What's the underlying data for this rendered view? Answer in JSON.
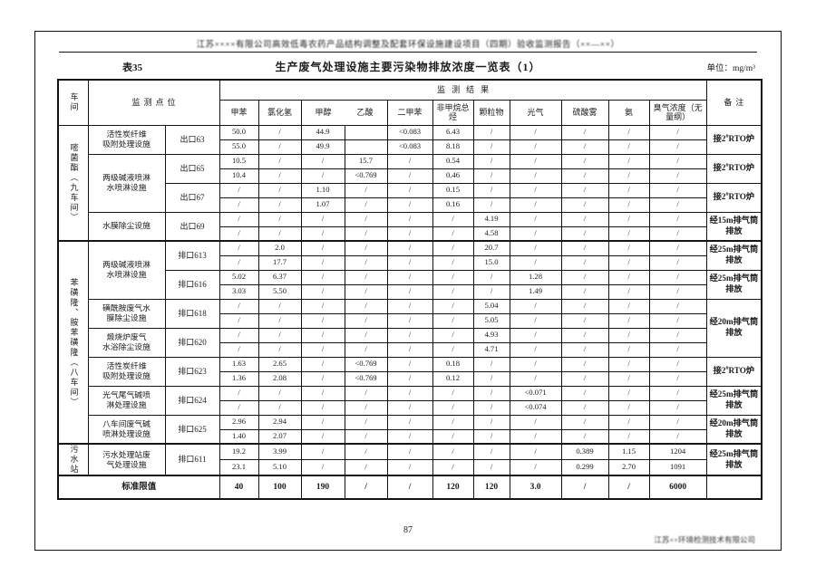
{
  "page": {
    "running_title": "江苏××××有限公司高效低毒农药产品结构调整及配套环保设施建设项目（四期）验收监测报告（××—××）",
    "table_no": "表35",
    "title": "生产废气处理设施主要污染物排放浓度一览表（1）",
    "unit": "单位：mg/m³",
    "page_number": "87",
    "footer_company": "江苏××环境检测技术有限公司"
  },
  "table": {
    "corner": {
      "workshop": "车间",
      "point": "监测点位",
      "result": "监测结果",
      "remark": "备注",
      "limits_label": "标准限值"
    },
    "columns": [
      "甲苯",
      "氯化氢",
      "甲醇",
      "乙酸",
      "二甲苯",
      "非甲烷总烃",
      "颗粒物",
      "光气",
      "硫酸雾",
      "氨",
      "臭气浓度（无量纲）"
    ],
    "sections": [
      {
        "row": 0,
        "span": 8,
        "label": "嘧菌酯（九车间）"
      },
      {
        "row": 8,
        "span": 14,
        "label": "苯磺隆、胺苯磺隆（八车间）"
      },
      {
        "row": 22,
        "span": 2,
        "label": "污水站"
      }
    ],
    "facilities": [
      {
        "row": 0,
        "span": 2,
        "name": "活性炭纤维\n吸附处理设施"
      },
      {
        "row": 2,
        "span": 4,
        "name": "两级碱液喷淋\n水喷淋设施"
      },
      {
        "row": 6,
        "span": 2,
        "name": "水膜除尘设施"
      },
      {
        "row": 8,
        "span": 4,
        "name": "两级碱液喷淋\n水喷淋设施"
      },
      {
        "row": 12,
        "span": 2,
        "name": "磺酰胺废气水\n膜除尘设施"
      },
      {
        "row": 14,
        "span": 2,
        "name": "煅烧炉废气\n水浴除尘设施"
      },
      {
        "row": 16,
        "span": 2,
        "name": "活性炭纤维\n吸附处理设施"
      },
      {
        "row": 18,
        "span": 2,
        "name": "光气尾气碱喷\n淋处理设施"
      },
      {
        "row": 20,
        "span": 2,
        "name": "八车间废气碱\n喷淋处理设施"
      },
      {
        "row": 22,
        "span": 2,
        "name": "污水处理站废\n气处理设施"
      }
    ],
    "outlets": [
      {
        "row": 0,
        "span": 2,
        "label": "出口63"
      },
      {
        "row": 2,
        "span": 2,
        "label": "出口65"
      },
      {
        "row": 4,
        "span": 2,
        "label": "出口67"
      },
      {
        "row": 6,
        "span": 2,
        "label": "出口69"
      },
      {
        "row": 8,
        "span": 2,
        "label": "排口613"
      },
      {
        "row": 10,
        "span": 2,
        "label": "排口616"
      },
      {
        "row": 12,
        "span": 2,
        "label": "排口618"
      },
      {
        "row": 14,
        "span": 2,
        "label": "排口620"
      },
      {
        "row": 16,
        "span": 2,
        "label": "排口623"
      },
      {
        "row": 18,
        "span": 2,
        "label": "排口624"
      },
      {
        "row": 20,
        "span": 2,
        "label": "排口625"
      },
      {
        "row": 22,
        "span": 2,
        "label": "排口611"
      }
    ],
    "remarks": [
      {
        "row": 0,
        "span": 2,
        "text": "接2#RTO炉"
      },
      {
        "row": 2,
        "span": 2,
        "text": "接2#RTO炉"
      },
      {
        "row": 4,
        "span": 2,
        "text": "接2#RTO炉"
      },
      {
        "row": 6,
        "span": 2,
        "text": "经15m排气筒排放"
      },
      {
        "row": 8,
        "span": 2,
        "text": "经25m排气筒排放"
      },
      {
        "row": 10,
        "span": 2,
        "text": "经25m排气筒排放"
      },
      {
        "row": 12,
        "span": 4,
        "text": "经20m排气筒排放"
      },
      {
        "row": 16,
        "span": 2,
        "text": "接2#RTO炉"
      },
      {
        "row": 18,
        "span": 2,
        "text": "经25m排气筒排放"
      },
      {
        "row": 20,
        "span": 2,
        "text": "经20m排气筒排放"
      },
      {
        "row": 22,
        "span": 2,
        "text": "经25m排气筒排放"
      }
    ],
    "rows": [
      [
        "50.0",
        "/",
        "44.9",
        "",
        "<0.083",
        "6.43",
        "/",
        "/",
        "/",
        "/",
        "/"
      ],
      [
        "55.0",
        "/",
        "49.9",
        "",
        "<0.083",
        "8.18",
        "/",
        "/",
        "/",
        "/",
        "/"
      ],
      [
        "10.5",
        "/",
        "/",
        "15.7",
        "/",
        "0.54",
        "/",
        "/",
        "/",
        "/",
        "/"
      ],
      [
        "10.4",
        "/",
        "/",
        "<0.769",
        "/",
        "0.46",
        "/",
        "/",
        "/",
        "/",
        "/"
      ],
      [
        "/",
        "/",
        "1.10",
        "/",
        "/",
        "0.15",
        "/",
        "/",
        "/",
        "/",
        "/"
      ],
      [
        "/",
        "/",
        "1.07",
        "/",
        "/",
        "0.16",
        "/",
        "/",
        "/",
        "/",
        "/"
      ],
      [
        "/",
        "/",
        "/",
        "/",
        "/",
        "/",
        "4.19",
        "/",
        "/",
        "/",
        "/"
      ],
      [
        "/",
        "/",
        "/",
        "/",
        "/",
        "/",
        "4.58",
        "/",
        "/",
        "/",
        "/"
      ],
      [
        "/",
        "2.0",
        "/",
        "/",
        "/",
        "/",
        "20.7",
        "/",
        "/",
        "/",
        "/"
      ],
      [
        "/",
        "17.7",
        "/",
        "/",
        "/",
        "/",
        "15.0",
        "/",
        "/",
        "/",
        "/"
      ],
      [
        "5.02",
        "6.37",
        "/",
        "/",
        "/",
        "/",
        "/",
        "1.28",
        "/",
        "/",
        "/"
      ],
      [
        "3.03",
        "5.50",
        "/",
        "/",
        "/",
        "/",
        "/",
        "1.49",
        "/",
        "/",
        "/"
      ],
      [
        "/",
        "/",
        "/",
        "/",
        "/",
        "/",
        "5.04",
        "/",
        "/",
        "/",
        "/"
      ],
      [
        "/",
        "/",
        "/",
        "/",
        "/",
        "/",
        "5.05",
        "/",
        "/",
        "/",
        "/"
      ],
      [
        "/",
        "/",
        "/",
        "/",
        "/",
        "/",
        "4.93",
        "/",
        "/",
        "/",
        "/"
      ],
      [
        "/",
        "/",
        "/",
        "/",
        "/",
        "/",
        "4.71",
        "/",
        "/",
        "/",
        "/"
      ],
      [
        "1.63",
        "2.65",
        "/",
        "<0.769",
        "/",
        "0.18",
        "/",
        "/",
        "/",
        "/",
        "/"
      ],
      [
        "1.36",
        "2.08",
        "/",
        "<0.769",
        "/",
        "0.12",
        "/",
        "/",
        "/",
        "/",
        "/"
      ],
      [
        "/",
        "/",
        "/",
        "/",
        "/",
        "/",
        "/",
        "<0.071",
        "/",
        "/",
        "/"
      ],
      [
        "/",
        "/",
        "/",
        "/",
        "/",
        "/",
        "/",
        "<0.074",
        "/",
        "/",
        "/"
      ],
      [
        "2.96",
        "2.94",
        "/",
        "/",
        "/",
        "/",
        "/",
        "/",
        "/",
        "/",
        "/"
      ],
      [
        "1.40",
        "2.07",
        "/",
        "/",
        "/",
        "/",
        "/",
        "/",
        "/",
        "/",
        "/"
      ],
      [
        "19.2",
        "3.99",
        "/",
        "/",
        "/",
        "/",
        "/",
        "/",
        "0.389",
        "1.15",
        "1204"
      ],
      [
        "23.1",
        "5.10",
        "/",
        "/",
        "/",
        "/",
        "/",
        "/",
        "0.299",
        "2.70",
        "1091"
      ]
    ],
    "limits": [
      "40",
      "100",
      "190",
      "/",
      "/",
      "120",
      "120",
      "3.0",
      "/",
      "/",
      "6000"
    ],
    "section_breaks": [
      8,
      22
    ]
  }
}
